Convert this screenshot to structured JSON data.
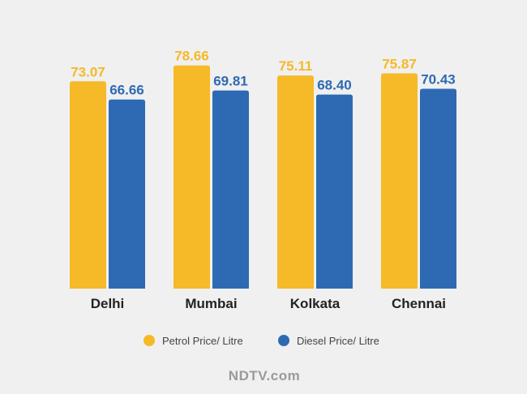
{
  "chart_data": {
    "type": "bar",
    "categories": [
      "Delhi",
      "Mumbai",
      "Kolkata",
      "Chennai"
    ],
    "series": [
      {
        "name": "Petrol Price/ Litre",
        "color": "#f6b928",
        "values": [
          73.07,
          78.66,
          75.11,
          75.87
        ],
        "labels": [
          "73.07",
          "78.66",
          "75.11",
          "75.87"
        ]
      },
      {
        "name": "Diesel Price/ Litre",
        "color": "#2d6ab3",
        "values": [
          66.66,
          69.81,
          68.4,
          70.43
        ],
        "labels": [
          "66.66",
          "69.81",
          "68.40",
          "70.43"
        ]
      }
    ],
    "ylim": [
      0,
      80
    ],
    "grid": false,
    "legend_position": "bottom-center",
    "title": "",
    "xlabel": "",
    "ylabel": ""
  },
  "brand": "NDTV.com"
}
